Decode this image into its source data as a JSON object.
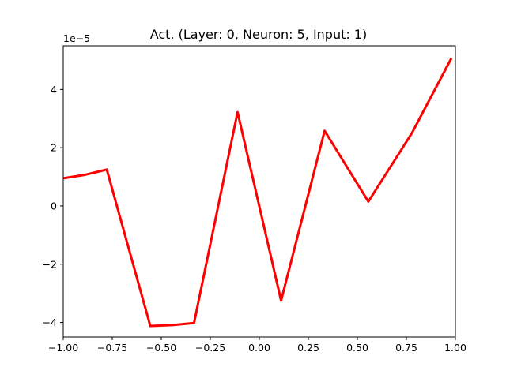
{
  "chart_data": {
    "type": "line",
    "title": "Act. (Layer: 0, Neuron: 5, Input: 1)",
    "xlabel": "",
    "ylabel": "",
    "y_scale_label": "1e−5",
    "xlim": [
      -1.0,
      1.0
    ],
    "ylim": [
      -4.5,
      5.5
    ],
    "x_ticks": [
      -1.0,
      -0.75,
      -0.5,
      -0.25,
      0.0,
      0.25,
      0.5,
      0.75,
      1.0
    ],
    "x_tick_labels": [
      "−1.00",
      "−0.75",
      "−0.50",
      "−0.25",
      "0.00",
      "0.25",
      "0.50",
      "0.75",
      "1.00"
    ],
    "y_ticks": [
      -4,
      -2,
      0,
      2,
      4
    ],
    "y_tick_labels": [
      "−4",
      "−2",
      "0",
      "2",
      "4"
    ],
    "grid": false,
    "legend": "none",
    "series": [
      {
        "color": "#ff0000",
        "x": [
          -1.0,
          -0.889,
          -0.778,
          -0.556,
          -0.444,
          -0.333,
          -0.111,
          0.111,
          0.333,
          0.556,
          0.778,
          0.98
        ],
        "y": [
          0.95,
          1.07,
          1.25,
          -4.12,
          -4.09,
          -4.02,
          3.22,
          -3.25,
          2.58,
          0.15,
          2.5,
          5.08
        ]
      }
    ]
  }
}
